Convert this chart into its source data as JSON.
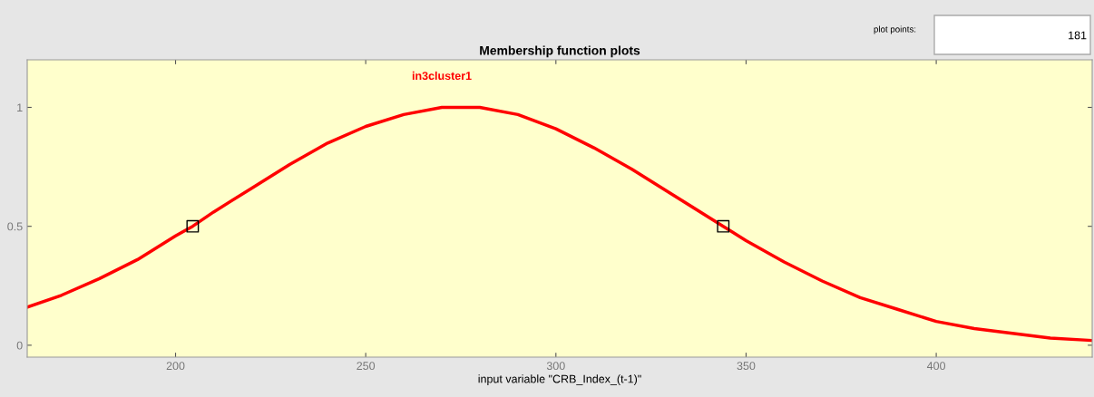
{
  "chart_data": {
    "type": "line",
    "title": "Membership function plots",
    "xlabel": "input variable \"CRB_Index_(t-1)\"",
    "annotations": [
      "plot points:",
      "181"
    ],
    "series": [
      {
        "name": "in3cluster1",
        "color": "#ff0000",
        "x": [
          161,
          170,
          180,
          190,
          200,
          204.5,
          210,
          220,
          230,
          240,
          250,
          260,
          270,
          274,
          280,
          290,
          300,
          310,
          320,
          330,
          340,
          344,
          350,
          360,
          370,
          380,
          390,
          400,
          410,
          420,
          430,
          441
        ],
        "values": [
          0.16,
          0.21,
          0.28,
          0.36,
          0.46,
          0.5,
          0.56,
          0.66,
          0.76,
          0.85,
          0.92,
          0.97,
          1.0,
          1.0,
          1.0,
          0.97,
          0.91,
          0.83,
          0.74,
          0.64,
          0.54,
          0.5,
          0.44,
          0.35,
          0.27,
          0.2,
          0.15,
          0.1,
          0.07,
          0.05,
          0.03,
          0.02
        ]
      },
      {
        "type": "scatter",
        "color": "#000000",
        "marker": "square",
        "x": [
          204.5,
          344
        ],
        "values": [
          0.5,
          0.5
        ]
      }
    ],
    "xlim": [
      161,
      441
    ],
    "ylim": [
      -0.05,
      1.2
    ],
    "xticks": [
      200,
      250,
      300,
      350,
      400
    ],
    "yticks": [
      0,
      0.5,
      1
    ],
    "grid": false,
    "legend": false
  }
}
